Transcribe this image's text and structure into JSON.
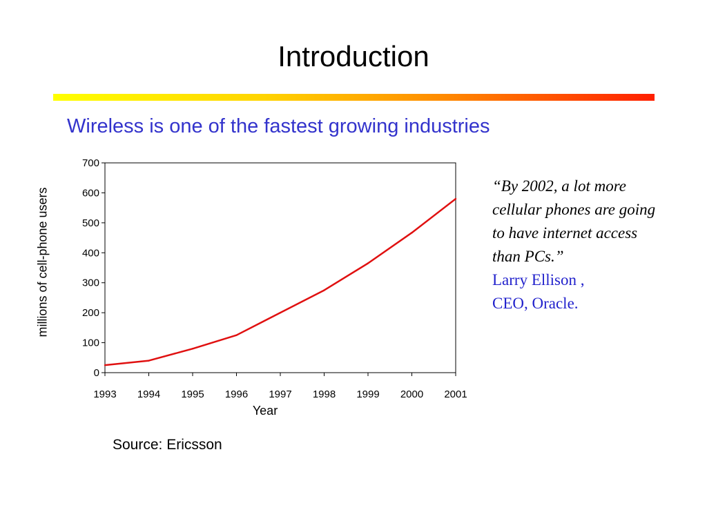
{
  "slide": {
    "title": "Introduction",
    "subtitle": "Wireless is one of the fastest growing industries",
    "source": "Source: Ericsson"
  },
  "quote": {
    "text": "“By 2002, a lot more cellular phones are going to have internet access than PCs.”",
    "author_line1": "Larry Ellison ,",
    "author_line2": "CEO, Oracle."
  },
  "colors": {
    "subtitle": "#3333cc",
    "author": "#2222cc",
    "series_line": "#e01010",
    "rule_start": "#ffff00",
    "rule_end": "#ff1f00"
  },
  "chart_data": {
    "type": "line",
    "title": "",
    "xlabel": "Year",
    "ylabel": "millions of cell-phone users",
    "x": [
      "1993",
      "1994",
      "1995",
      "1996",
      "1997",
      "1998",
      "1999",
      "2000",
      "2001"
    ],
    "series": [
      {
        "values": [
          25,
          40,
          80,
          125,
          200,
          275,
          365,
          467,
          580
        ]
      }
    ],
    "ylim": [
      0,
      700
    ],
    "yticks": [
      0,
      100,
      200,
      300,
      400,
      500,
      600,
      700
    ],
    "grid": false,
    "legend": "none"
  }
}
